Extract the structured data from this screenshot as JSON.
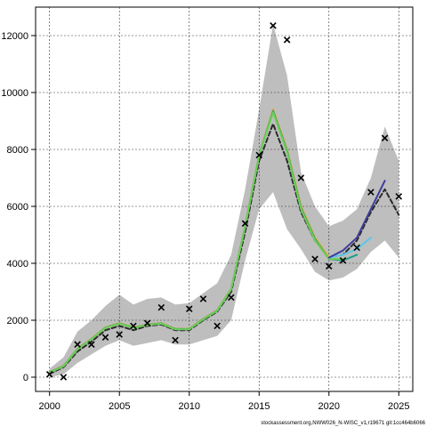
{
  "chart_data": {
    "type": "line",
    "title": "",
    "xlabel": "",
    "ylabel": "",
    "xlim": [
      1999,
      2026
    ],
    "ylim": [
      -500,
      13000
    ],
    "x_ticks": [
      2000,
      2005,
      2010,
      2015,
      2020,
      2025
    ],
    "y_ticks": [
      0,
      2000,
      4000,
      6000,
      8000,
      10000,
      12000
    ],
    "x_tick_labels": [
      "2000",
      "2005",
      "2010",
      "2015",
      "2020",
      "2025"
    ],
    "y_tick_labels": [
      "0",
      "2000",
      "4000",
      "6000",
      "8000",
      "10000",
      "12000"
    ],
    "grid": true,
    "confidence_band": {
      "x": [
        2000,
        2001,
        2002,
        2003,
        2004,
        2005,
        2006,
        2007,
        2008,
        2009,
        2010,
        2011,
        2012,
        2013,
        2014,
        2015,
        2016,
        2017,
        2018,
        2019,
        2020,
        2021,
        2022,
        2023,
        2024,
        2025
      ],
      "upper": [
        300,
        700,
        1600,
        2000,
        2500,
        2900,
        2550,
        2750,
        2800,
        2550,
        2600,
        2950,
        3300,
        4300,
        6600,
        9400,
        12400,
        10600,
        7200,
        6000,
        5300,
        5500,
        5900,
        7000,
        8800,
        7600
      ],
      "lower": [
        0,
        100,
        500,
        800,
        1100,
        1300,
        1100,
        1200,
        1300,
        1150,
        1150,
        1300,
        1450,
        2000,
        4100,
        5900,
        6500,
        5200,
        4500,
        3700,
        3400,
        3500,
        3800,
        4400,
        4800,
        4200
      ]
    },
    "series": [
      {
        "color": "#2b2b2b",
        "x": [
          2000,
          2001,
          2002,
          2003,
          2004,
          2005,
          2006,
          2007,
          2008,
          2009,
          2010,
          2011,
          2012,
          2013,
          2014,
          2015,
          2016,
          2017,
          2018,
          2019,
          2020,
          2021,
          2022,
          2023,
          2024,
          2025
        ],
        "y": [
          120,
          350,
          900,
          1250,
          1650,
          1800,
          1650,
          1800,
          1850,
          1650,
          1650,
          2000,
          2300,
          3000,
          5100,
          7600,
          8900,
          7600,
          5800,
          4800,
          4200,
          4300,
          4800,
          5800,
          6600,
          5700
        ]
      },
      {
        "color": "#e6a817",
        "x": [
          2000,
          2001,
          2002,
          2003,
          2004,
          2005,
          2006,
          2007,
          2008,
          2009,
          2010,
          2011,
          2012,
          2013,
          2014,
          2015,
          2016,
          2017,
          2018,
          2019,
          2020
        ],
        "y": [
          180,
          400,
          1000,
          1350,
          1750,
          1900,
          1750,
          1850,
          1900,
          1700,
          1700,
          2050,
          2350,
          3100,
          5300,
          7800,
          9400,
          8000,
          6000,
          4900,
          4200
        ]
      },
      {
        "color": "#1f9e89",
        "x": [
          2000,
          2001,
          2002,
          2003,
          2004,
          2005,
          2006,
          2007,
          2008,
          2009,
          2010,
          2011,
          2012,
          2013,
          2014,
          2015,
          2016,
          2017,
          2018,
          2019,
          2020,
          2021,
          2022
        ],
        "y": [
          170,
          390,
          990,
          1340,
          1740,
          1890,
          1740,
          1840,
          1890,
          1690,
          1690,
          2040,
          2340,
          3090,
          5290,
          7790,
          9350,
          7950,
          5950,
          4850,
          4150,
          4100,
          4300
        ]
      },
      {
        "color": "#6ece58",
        "x": [
          2000,
          2001,
          2002,
          2003,
          2004,
          2005,
          2006,
          2007,
          2008,
          2009,
          2010,
          2011,
          2012,
          2013,
          2014,
          2015,
          2016,
          2017,
          2018,
          2019,
          2020,
          2021
        ],
        "y": [
          160,
          380,
          980,
          1330,
          1730,
          1880,
          1730,
          1830,
          1880,
          1680,
          1680,
          2030,
          2330,
          3080,
          5280,
          7780,
          9300,
          7900,
          5900,
          4800,
          4150,
          4150
        ]
      },
      {
        "color": "#5bc8e8",
        "x": [
          2020,
          2021,
          2022,
          2023
        ],
        "y": [
          4200,
          4300,
          4500,
          4900
        ]
      },
      {
        "color": "#3e3d9f",
        "x": [
          2020,
          2021,
          2022,
          2023,
          2024
        ],
        "y": [
          4200,
          4450,
          4900,
          5900,
          6900
        ]
      }
    ],
    "observations": {
      "x": [
        2000,
        2001,
        2002,
        2003,
        2004,
        2005,
        2006,
        2007,
        2008,
        2009,
        2010,
        2011,
        2012,
        2013,
        2014,
        2015,
        2016,
        2017,
        2018,
        2019,
        2020,
        2021,
        2022,
        2023,
        2024,
        2025
      ],
      "y": [
        100,
        0,
        1150,
        1150,
        1400,
        1500,
        1800,
        1900,
        2450,
        1300,
        2400,
        2750,
        1800,
        2800,
        5400,
        7800,
        12350,
        11850,
        7000,
        4150,
        3900,
        4100,
        4550,
        6500,
        8400,
        6350
      ]
    },
    "footer": "stockassessment.org,NWW026_N-WISC_v1,r19671 git:1cc464b6066"
  },
  "colors": {
    "band": "#bebebe",
    "grid": "#333333",
    "axis": "#000000"
  }
}
